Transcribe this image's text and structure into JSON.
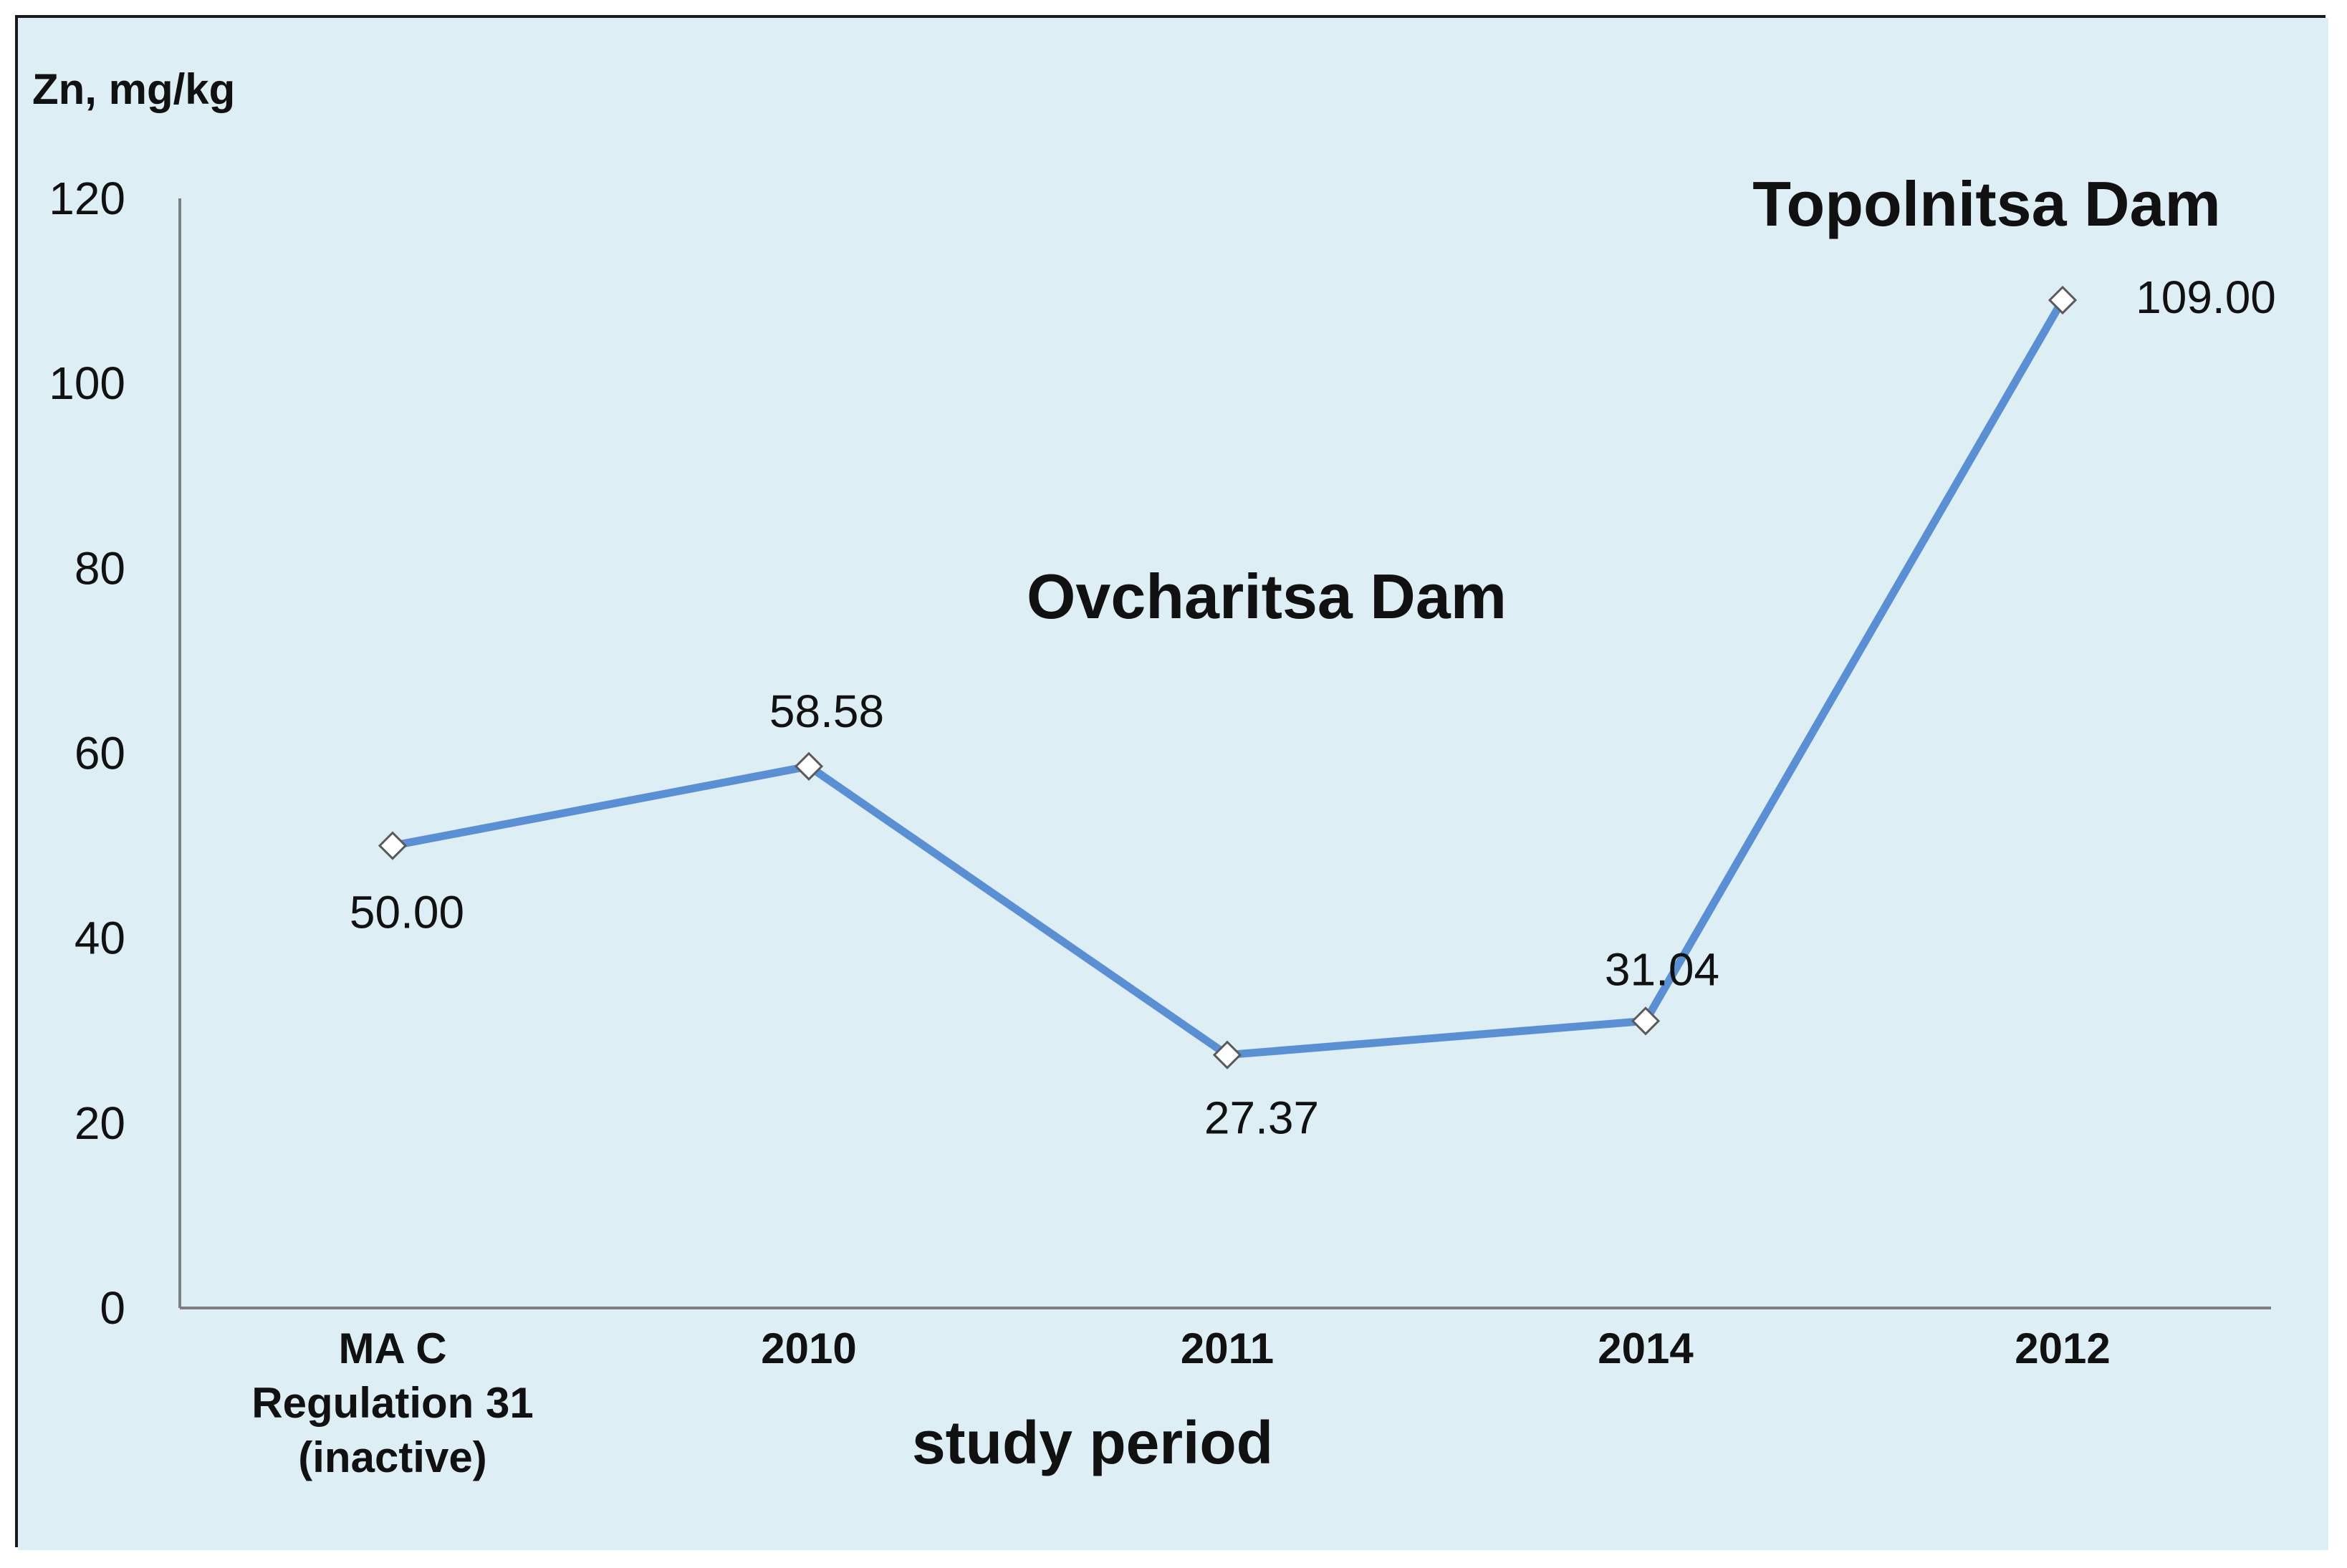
{
  "chart_data": {
    "type": "line",
    "title": "",
    "ylabel": "Zn, mg/kg",
    "xlabel": "study period",
    "ylim": [
      0,
      120
    ],
    "yticks": [
      0,
      20,
      40,
      60,
      80,
      100,
      120
    ],
    "categories": [
      [
        "MA C",
        "Regulation 31",
        "(inactive)"
      ],
      [
        "2010"
      ],
      [
        "2011"
      ],
      [
        "2014"
      ],
      [
        "2012"
      ]
    ],
    "series": [
      {
        "name": "Zn",
        "values": [
          50.0,
          58.58,
          27.37,
          31.04,
          109.0
        ],
        "labels": [
          "50.00",
          "58.58",
          "27.37",
          "31.04",
          "109.00"
        ]
      }
    ],
    "annotations": [
      {
        "text": "Ovcharitsa Dam"
      },
      {
        "text": "Topolnitsa Dam"
      }
    ],
    "colors": {
      "background": "#ddeef4",
      "line": "#5b8fd4",
      "axis": "#7f7f7f",
      "marker_fill": "#ffffff"
    }
  }
}
